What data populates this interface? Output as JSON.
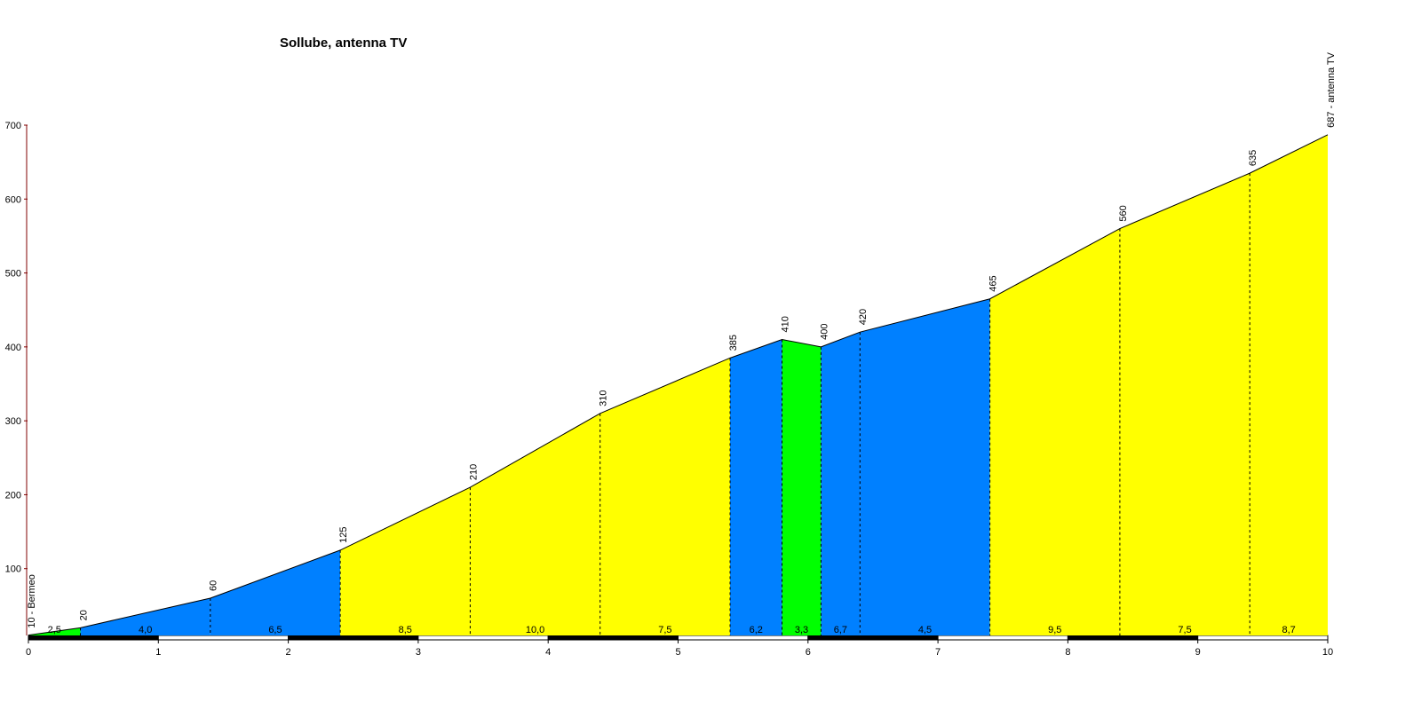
{
  "chart_data": {
    "type": "profile",
    "title": "Sollube, antenna TV",
    "x": [
      0,
      0.4,
      1.4,
      2.4,
      3.4,
      4.4,
      5.4,
      5.8,
      6.1,
      6.4,
      7.4,
      8.4,
      9.4,
      10
    ],
    "values": [
      10,
      20,
      60,
      125,
      210,
      310,
      385,
      410,
      400,
      420,
      465,
      560,
      635,
      687
    ],
    "value_labels": [
      "10 - Bermeo",
      "20",
      "60",
      "125",
      "210",
      "310",
      "385",
      "410",
      "400",
      "420",
      "465",
      "560",
      "635",
      "687 - antenna TV"
    ],
    "segments": {
      "values": [
        2.5,
        4.0,
        6.5,
        8.5,
        10.0,
        7.5,
        6.2,
        3.3,
        6.7,
        4.5,
        9.5,
        7.5,
        8.7
      ],
      "value_labels": [
        "2,5",
        "4,0",
        "6,5",
        "8,5",
        "10,0",
        "7,5",
        "6,2",
        "3,3",
        "6,7",
        "4,5",
        "9,5",
        "7,5",
        "8,7"
      ],
      "colors": [
        "#00ff00",
        "#0080ff",
        "#0080ff",
        "#ffff00",
        "#ffff00",
        "#ffff00",
        "#0080ff",
        "#00ff00",
        "#0080ff",
        "#0080ff",
        "#ffff00",
        "#ffff00",
        "#ffff00"
      ]
    },
    "xlim": [
      0,
      10
    ],
    "xticks": [
      0,
      1,
      2,
      3,
      4,
      5,
      6,
      7,
      8,
      9,
      10
    ],
    "ylim": [
      0,
      700
    ],
    "yticks": [
      100,
      200,
      300,
      400,
      500,
      600,
      700
    ]
  }
}
